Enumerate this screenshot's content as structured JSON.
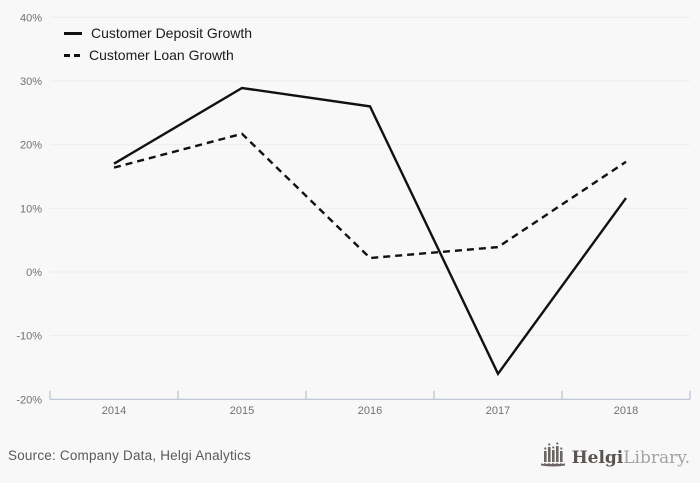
{
  "chart_data": {
    "type": "line",
    "title": "",
    "categories": [
      "2014",
      "2015",
      "2016",
      "2017",
      "2018"
    ],
    "series": [
      {
        "name": "Customer Deposit Growth",
        "style": "solid",
        "color": "#111111",
        "values": [
          17.0,
          28.9,
          26.0,
          -16.0,
          11.6
        ]
      },
      {
        "name": "Customer Loan Growth",
        "style": "dashed",
        "color": "#111111",
        "values": [
          16.4,
          21.7,
          2.2,
          3.9,
          17.3
        ]
      }
    ],
    "ylim": [
      -20,
      40
    ],
    "y_ticks": [
      {
        "value": 40,
        "label": "40%"
      },
      {
        "value": 30,
        "label": "30%"
      },
      {
        "value": 20,
        "label": "20%"
      },
      {
        "value": 10,
        "label": "10%"
      },
      {
        "value": 0,
        "label": "0%"
      },
      {
        "value": -10,
        "label": "-10%"
      },
      {
        "value": -20,
        "label": "-20%"
      }
    ],
    "grid": true,
    "legend_position": "top-left",
    "colors": {
      "background": "#f8f8f8",
      "gridline": "#ececec",
      "axis": "#b9c1d3",
      "tick_text": "#6e7176",
      "line": "#111111"
    }
  },
  "footer": {
    "source": "Source: Company Data, Helgi Analytics",
    "logo": {
      "icon": "city-skyline-icon",
      "text_bold": "Helgi",
      "text_light": "Library."
    }
  }
}
